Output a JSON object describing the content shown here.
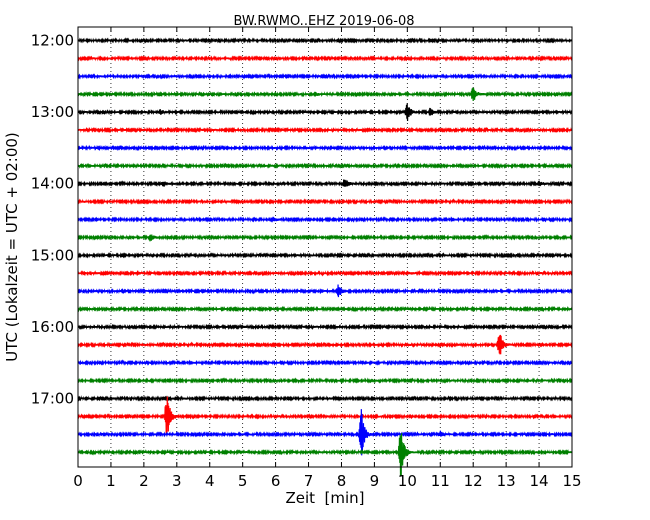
{
  "chart_data": {
    "type": "line",
    "title": "BW.RWMO..EHZ 2019-06-08",
    "xlabel": "Zeit  [min]",
    "ylabel": "UTC (Lokalzeit = UTC + 02:00)",
    "xlim": [
      0,
      15
    ],
    "x_ticks": [
      "0",
      "1",
      "2",
      "3",
      "4",
      "5",
      "6",
      "7",
      "8",
      "9",
      "10",
      "11",
      "12",
      "13",
      "14",
      "15"
    ],
    "y_ticks": [
      "12:00",
      "13:00",
      "14:00",
      "15:00",
      "16:00",
      "17:00"
    ],
    "grid": "vertical dotted",
    "trace_colors": [
      "#000000",
      "#ff0000",
      "#0000ff",
      "#008000"
    ],
    "traces": [
      {
        "start": "12:00",
        "color": "#000000",
        "events": []
      },
      {
        "start": "12:15",
        "color": "#ff0000",
        "events": []
      },
      {
        "start": "12:30",
        "color": "#0000ff",
        "events": []
      },
      {
        "start": "12:45",
        "color": "#008000",
        "events": [
          {
            "t": 7.2,
            "amp": 0.2
          },
          {
            "t": 12.0,
            "amp": 1.0
          }
        ]
      },
      {
        "start": "13:00",
        "color": "#000000",
        "events": [
          {
            "t": 2.5,
            "amp": 0.3
          },
          {
            "t": 10.0,
            "amp": 1.0
          },
          {
            "t": 10.7,
            "amp": 0.5
          }
        ]
      },
      {
        "start": "13:15",
        "color": "#ff0000",
        "events": []
      },
      {
        "start": "13:30",
        "color": "#0000ff",
        "events": []
      },
      {
        "start": "13:45",
        "color": "#008000",
        "events": []
      },
      {
        "start": "14:00",
        "color": "#000000",
        "events": [
          {
            "t": 2.6,
            "amp": 0.3
          },
          {
            "t": 8.1,
            "amp": 0.6
          },
          {
            "t": 14.0,
            "amp": 0.3
          }
        ]
      },
      {
        "start": "14:15",
        "color": "#ff0000",
        "events": []
      },
      {
        "start": "14:30",
        "color": "#0000ff",
        "events": [
          {
            "t": 5.9,
            "amp": 0.3
          }
        ]
      },
      {
        "start": "14:45",
        "color": "#008000",
        "events": [
          {
            "t": 2.2,
            "amp": 0.4
          }
        ]
      },
      {
        "start": "15:00",
        "color": "#000000",
        "events": []
      },
      {
        "start": "15:15",
        "color": "#ff0000",
        "events": [
          {
            "t": 1.8,
            "amp": 0.2
          },
          {
            "t": 10.0,
            "amp": 0.2
          }
        ]
      },
      {
        "start": "15:30",
        "color": "#0000ff",
        "events": [
          {
            "t": 7.9,
            "amp": 0.8
          }
        ]
      },
      {
        "start": "15:45",
        "color": "#008000",
        "events": []
      },
      {
        "start": "16:00",
        "color": "#000000",
        "events": []
      },
      {
        "start": "16:15",
        "color": "#ff0000",
        "events": [
          {
            "t": 12.8,
            "amp": 1.6
          }
        ]
      },
      {
        "start": "16:30",
        "color": "#0000ff",
        "events": []
      },
      {
        "start": "16:45",
        "color": "#008000",
        "events": []
      },
      {
        "start": "17:00",
        "color": "#000000",
        "events": []
      },
      {
        "start": "17:15",
        "color": "#ff0000",
        "events": [
          {
            "t": 2.7,
            "amp": 3.0
          }
        ]
      },
      {
        "start": "17:30",
        "color": "#0000ff",
        "events": [
          {
            "t": 8.6,
            "amp": 3.0
          },
          {
            "t": 11.0,
            "amp": 0.3
          }
        ]
      },
      {
        "start": "17:45",
        "color": "#008000",
        "events": [
          {
            "t": 9.8,
            "amp": 3.0
          }
        ]
      }
    ]
  }
}
